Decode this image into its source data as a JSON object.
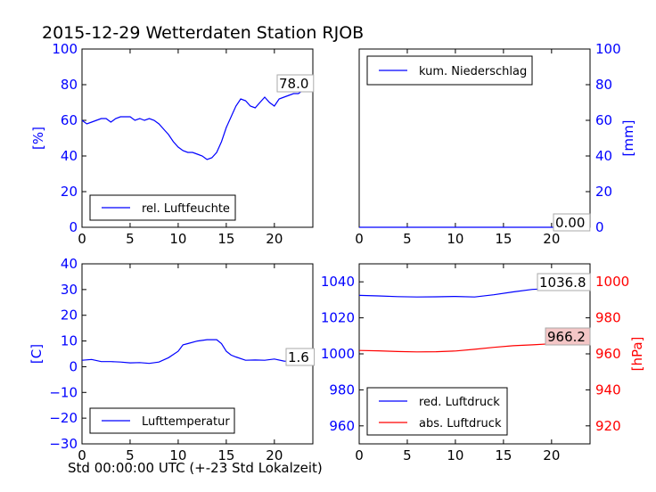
{
  "title": "2015-12-29 Wetterdaten Station RJOB",
  "xlabel": "Std 00:00:00 UTC (+-23 Std Lokalzeit)",
  "colors": {
    "primary": "#0000ff",
    "secondary": "#ff0000",
    "axis": "#000000",
    "box_red_fill": "#f4c6c6"
  },
  "chart_data": [
    {
      "type": "line",
      "panel": "top-left",
      "ylabel": "[%]",
      "xlim": [
        0,
        24
      ],
      "ylim": [
        0,
        100
      ],
      "x_ticks": [
        "0",
        "5",
        "10",
        "15",
        "20"
      ],
      "y_ticks": [
        "0",
        "20",
        "40",
        "60",
        "80",
        "100"
      ],
      "legend": {
        "position": "lower-left"
      },
      "series": [
        {
          "name": "rel. Luftfeuchte",
          "color": "#0000ff",
          "x": [
            0,
            0.5,
            1,
            1.5,
            2,
            2.5,
            3,
            3.5,
            4,
            4.5,
            5,
            5.5,
            6,
            6.5,
            7,
            7.5,
            8,
            8.5,
            9,
            9.5,
            10,
            10.5,
            11,
            11.5,
            12,
            12.5,
            13,
            13.5,
            14,
            14.5,
            15,
            15.5,
            16,
            16.5,
            17,
            17.5,
            18,
            18.5,
            19,
            19.5,
            20,
            20.5,
            21,
            21.5,
            22,
            22.5,
            23,
            23.5,
            24
          ],
          "y": [
            60,
            58,
            59,
            60,
            61,
            61,
            59,
            61,
            62,
            62,
            62,
            60,
            61,
            60,
            61,
            60,
            58,
            55,
            52,
            48,
            45,
            43,
            42,
            42,
            41,
            40,
            38,
            39,
            42,
            48,
            56,
            62,
            68,
            72,
            71,
            68,
            67,
            70,
            73,
            70,
            68,
            72,
            73,
            74,
            75,
            75,
            77,
            78,
            78
          ]
        }
      ],
      "annotation": "78.0"
    },
    {
      "type": "line",
      "panel": "top-right",
      "ylabel": "[mm]",
      "xlim": [
        0,
        24
      ],
      "ylim": [
        0,
        100
      ],
      "x_ticks": [
        "0",
        "5",
        "10",
        "15",
        "20"
      ],
      "y_ticks": [
        "0",
        "20",
        "40",
        "60",
        "80",
        "100"
      ],
      "legend": {
        "position": "upper-left"
      },
      "series": [
        {
          "name": "kum. Niederschlag",
          "color": "#0000ff",
          "x": [
            0,
            24
          ],
          "y": [
            0,
            0
          ]
        }
      ],
      "annotation": "0.00"
    },
    {
      "type": "line",
      "panel": "bottom-left",
      "ylabel": "[C]",
      "xlim": [
        0,
        24
      ],
      "ylim": [
        -30,
        40
      ],
      "x_ticks": [
        "0",
        "5",
        "10",
        "15",
        "20"
      ],
      "y_ticks": [
        "−30",
        "−20",
        "−10",
        "0",
        "10",
        "20",
        "30",
        "40"
      ],
      "legend": {
        "position": "lower-left"
      },
      "series": [
        {
          "name": "Lufttemperatur",
          "color": "#0000ff",
          "x": [
            0,
            1,
            2,
            3,
            4,
            5,
            6,
            7,
            8,
            9,
            10,
            10.5,
            11,
            12,
            13,
            14,
            14.5,
            15,
            15.5,
            16,
            17,
            18,
            19,
            20,
            21,
            22,
            23,
            24
          ],
          "y": [
            2.5,
            2.8,
            2,
            2,
            1.8,
            1.5,
            1.6,
            1.3,
            1.8,
            3.5,
            6,
            8.5,
            9,
            10,
            10.5,
            10.5,
            9,
            6,
            4.5,
            3.8,
            2.5,
            2.6,
            2.5,
            3,
            2.2,
            2,
            1.7,
            1.6
          ]
        }
      ],
      "annotation": "1.6"
    },
    {
      "type": "line",
      "panel": "bottom-right",
      "ylabel": "[hPa]",
      "xlim": [
        0,
        24
      ],
      "ylim_left": [
        950,
        1050
      ],
      "ylim_right": [
        910,
        1010
      ],
      "x_ticks": [
        "0",
        "5",
        "10",
        "15",
        "20"
      ],
      "y_ticks_left": [
        "960",
        "980",
        "1000",
        "1020",
        "1040"
      ],
      "y_ticks_right": [
        "920",
        "940",
        "960",
        "980",
        "1000"
      ],
      "legend": {
        "position": "lower-left"
      },
      "series": [
        {
          "name": "red. Luftdruck",
          "color": "#0000ff",
          "axis": "left",
          "x": [
            0,
            2,
            4,
            6,
            8,
            10,
            12,
            14,
            16,
            18,
            20,
            22,
            24
          ],
          "y": [
            1032.5,
            1032.2,
            1031.8,
            1031.6,
            1031.7,
            1031.9,
            1031.6,
            1032.8,
            1034.4,
            1035.8,
            1036.3,
            1036.5,
            1036.8
          ]
        },
        {
          "name": "abs. Luftdruck",
          "color": "#ff0000",
          "axis": "right",
          "x": [
            0,
            2,
            4,
            6,
            8,
            10,
            12,
            14,
            16,
            18,
            20,
            22,
            24
          ],
          "y": [
            961.9,
            961.7,
            961.3,
            961.1,
            961.2,
            961.6,
            962.5,
            963.6,
            964.5,
            965.0,
            965.6,
            966.0,
            966.2
          ]
        }
      ],
      "annotations": [
        "1036.8",
        "966.2"
      ]
    }
  ]
}
